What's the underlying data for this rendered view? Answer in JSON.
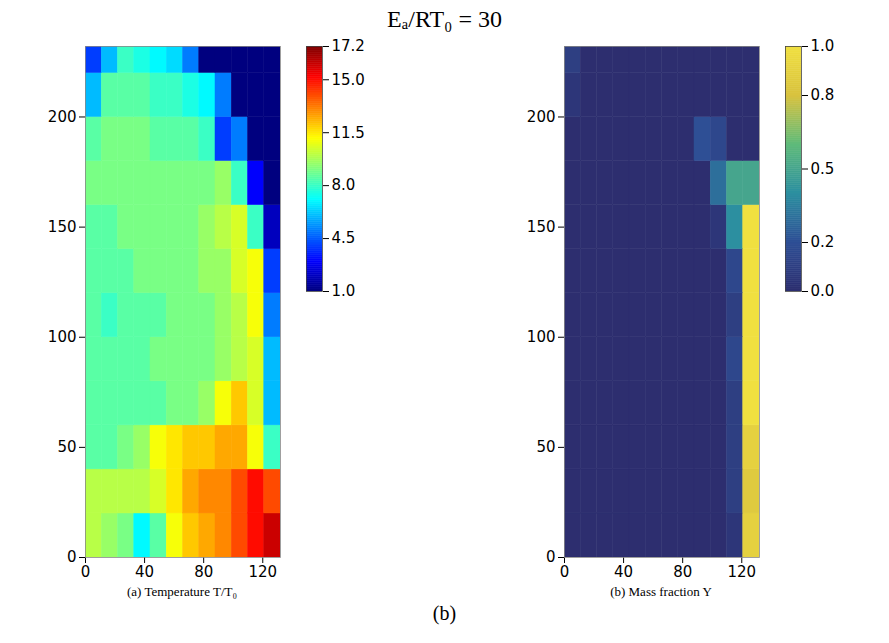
{
  "title": "Eₐ/RT₀ = 30",
  "caption": "(b)",
  "chart_data": [
    {
      "type": "heatmap",
      "title": "(a) Temperature T/T₀",
      "color": "jet",
      "xlim": [
        0,
        132
      ],
      "ylim": [
        0,
        232
      ],
      "xticks": [
        0,
        40,
        80,
        120
      ],
      "yticks": [
        0,
        50,
        100,
        150,
        200
      ],
      "x_edges": [
        0,
        11,
        22,
        33,
        44,
        55,
        66,
        77,
        88,
        99,
        110,
        121,
        132
      ],
      "y_edges": [
        0,
        20,
        40,
        60,
        80,
        100,
        120,
        140,
        160,
        180,
        200,
        220,
        232
      ],
      "values": [
        [
          10,
          9.5,
          9,
          7,
          8.5,
          11,
          12,
          12.5,
          13,
          14,
          15,
          16
        ],
        [
          10,
          10,
          10,
          10,
          10.5,
          11.5,
          12.5,
          13,
          13,
          14,
          15,
          14
        ],
        [
          8.5,
          8.5,
          9,
          9.5,
          11,
          11.5,
          12,
          12,
          12.5,
          12.5,
          11,
          8
        ],
        [
          8.5,
          8.5,
          8.5,
          8.5,
          8.5,
          9,
          9,
          9.5,
          11,
          12,
          10.5,
          6
        ],
        [
          8.5,
          8.5,
          8.5,
          8.5,
          9,
          9,
          9,
          9,
          9.5,
          10,
          10.5,
          6
        ],
        [
          8.5,
          8,
          8.5,
          8.5,
          8.5,
          9,
          9,
          9,
          9.5,
          10,
          11,
          5
        ],
        [
          8.5,
          8.5,
          8.5,
          9,
          9,
          9,
          9,
          9.5,
          9.5,
          10.5,
          11,
          4
        ],
        [
          8.5,
          8.5,
          9,
          9,
          9,
          9,
          9,
          9.5,
          10,
          10.5,
          8,
          2
        ],
        [
          9,
          9,
          9,
          9,
          9,
          9,
          9,
          9,
          9.5,
          8,
          3,
          1
        ],
        [
          8.5,
          9,
          9,
          9,
          8.5,
          8.5,
          8.5,
          8,
          4,
          5,
          1,
          1
        ],
        [
          6,
          8.5,
          8.5,
          8.5,
          8,
          8,
          7.5,
          7,
          5,
          1,
          1,
          1
        ],
        [
          4,
          6,
          8,
          7.5,
          7,
          6.5,
          5,
          1,
          1,
          1,
          1,
          1
        ]
      ],
      "colorbar_range": [
        1,
        17.2
      ],
      "colorbar_ticks": [
        {
          "value": 1,
          "label": "1.0"
        },
        4.5,
        {
          "value": 8,
          "label": "8.0"
        },
        11.5,
        {
          "value": 15,
          "label": "15.0"
        },
        17.2
      ]
    },
    {
      "type": "heatmap",
      "title": "(b) Mass fraction Y",
      "color": "viridis",
      "xlim": [
        0,
        132
      ],
      "ylim": [
        0,
        232
      ],
      "xticks": [
        0,
        40,
        80,
        120
      ],
      "yticks": [
        0,
        50,
        100,
        150,
        200
      ],
      "x_edges": [
        0,
        11,
        22,
        33,
        44,
        55,
        66,
        77,
        88,
        99,
        110,
        121,
        132
      ],
      "y_edges": [
        0,
        20,
        40,
        60,
        80,
        100,
        120,
        140,
        160,
        180,
        200,
        220,
        232
      ],
      "values": [
        [
          0,
          0,
          0,
          0,
          0,
          0,
          0,
          0,
          0,
          0,
          0.05,
          0.9
        ],
        [
          0,
          0,
          0,
          0,
          0,
          0,
          0,
          0,
          0,
          0,
          0.1,
          0.85
        ],
        [
          0,
          0,
          0,
          0,
          0,
          0,
          0,
          0,
          0,
          0,
          0.1,
          0.9
        ],
        [
          0,
          0,
          0,
          0,
          0,
          0,
          0,
          0,
          0,
          0,
          0.1,
          1
        ],
        [
          0,
          0,
          0,
          0,
          0,
          0,
          0,
          0,
          0,
          0,
          0.15,
          1
        ],
        [
          0,
          0,
          0,
          0,
          0,
          0,
          0,
          0,
          0,
          0,
          0.1,
          1
        ],
        [
          0,
          0,
          0,
          0,
          0,
          0,
          0,
          0,
          0,
          0,
          0.15,
          1
        ],
        [
          0,
          0,
          0,
          0,
          0,
          0,
          0,
          0,
          0,
          0.05,
          0.4,
          1
        ],
        [
          0,
          0,
          0,
          0,
          0,
          0,
          0,
          0,
          0,
          0.3,
          0.5,
          0.5
        ],
        [
          0,
          0,
          0,
          0,
          0,
          0,
          0,
          0,
          0.2,
          0.15,
          0,
          0
        ],
        [
          0.05,
          0,
          0,
          0,
          0,
          0,
          0,
          0,
          0,
          0,
          0,
          0
        ],
        [
          0.1,
          0,
          0,
          0,
          0,
          0,
          0,
          0,
          0,
          0,
          0,
          0
        ]
      ],
      "colorbar_range": [
        0,
        1
      ],
      "colorbar_ticks": [
        {
          "value": 0,
          "label": "0.0"
        },
        0.2,
        0.5,
        0.8,
        {
          "value": 1,
          "label": "1.0"
        }
      ]
    }
  ]
}
